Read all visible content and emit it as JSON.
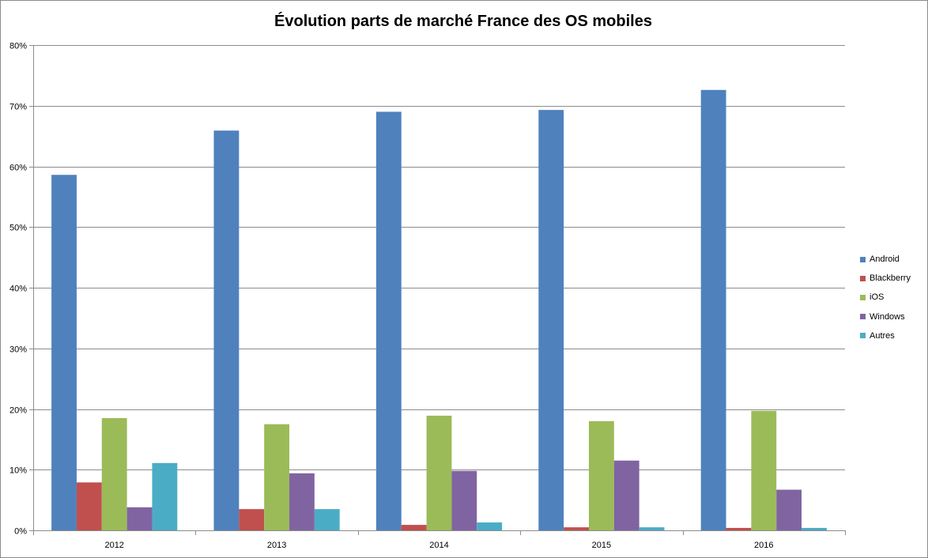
{
  "chart_data": {
    "type": "bar",
    "title": "Évolution parts de marché France des OS mobiles",
    "xlabel": "",
    "ylabel": "",
    "categories": [
      "2012",
      "2013",
      "2014",
      "2015",
      "2016"
    ],
    "ylim": [
      0,
      80
    ],
    "yticks": [
      0,
      10,
      20,
      30,
      40,
      50,
      60,
      70,
      80
    ],
    "ytick_labels": [
      "0%",
      "10%",
      "20%",
      "30%",
      "40%",
      "50%",
      "60%",
      "70%",
      "80%"
    ],
    "grid": true,
    "legend_position": "right",
    "series": [
      {
        "name": "Android",
        "color": "#4f81bd",
        "values": [
          58.6,
          65.9,
          69.0,
          69.3,
          72.6
        ]
      },
      {
        "name": "Blackberry",
        "color": "#c0504d",
        "values": [
          7.9,
          3.5,
          0.9,
          0.5,
          0.4
        ]
      },
      {
        "name": "iOS",
        "color": "#9bbb59",
        "values": [
          18.5,
          17.5,
          18.9,
          18.0,
          19.7
        ]
      },
      {
        "name": "Windows",
        "color": "#8064a2",
        "values": [
          3.8,
          9.4,
          9.8,
          11.5,
          6.7
        ]
      },
      {
        "name": "Autres",
        "color": "#4bacc6",
        "values": [
          11.1,
          3.5,
          1.3,
          0.5,
          0.4
        ]
      }
    ]
  }
}
